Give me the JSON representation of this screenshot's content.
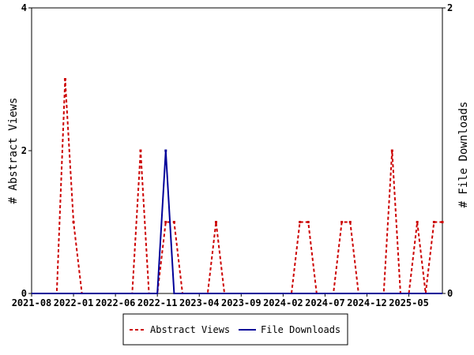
{
  "chart_data": {
    "type": "line",
    "x": [
      "2021-08",
      "2021-09",
      "2021-10",
      "2021-11",
      "2021-12",
      "2022-01",
      "2022-02",
      "2022-03",
      "2022-04",
      "2022-05",
      "2022-06",
      "2022-07",
      "2022-08",
      "2022-09",
      "2022-10",
      "2022-11",
      "2022-12",
      "2023-01",
      "2023-02",
      "2023-03",
      "2023-04",
      "2023-05",
      "2023-06",
      "2023-07",
      "2023-08",
      "2023-09",
      "2023-10",
      "2023-11",
      "2023-12",
      "2024-01",
      "2024-02",
      "2024-03",
      "2024-04",
      "2024-05",
      "2024-06",
      "2024-07",
      "2024-08",
      "2024-09",
      "2024-10",
      "2024-11",
      "2024-12",
      "2025-01",
      "2025-02",
      "2025-03",
      "2025-04",
      "2025-05",
      "2025-06",
      "2025-07",
      "2025-08",
      "2025-09"
    ],
    "x_tick_labels": [
      "2021-08",
      "2022-01",
      "2022-06",
      "2022-11",
      "2023-04",
      "2023-09",
      "2024-02",
      "2024-07",
      "2024-12",
      "2025-05"
    ],
    "series": [
      {
        "name": "Abstract Views",
        "axis": "left",
        "color": "#cc0000",
        "style": "dashed",
        "values": [
          0,
          0,
          0,
          0,
          3,
          1,
          0,
          0,
          0,
          0,
          0,
          0,
          0,
          2,
          0,
          0,
          1,
          1,
          0,
          0,
          0,
          0,
          1,
          0,
          0,
          0,
          0,
          0,
          0,
          0,
          0,
          0,
          1,
          1,
          0,
          0,
          0,
          1,
          1,
          0,
          0,
          0,
          0,
          2,
          0,
          0,
          1,
          0,
          1,
          1
        ]
      },
      {
        "name": "File Downloads",
        "axis": "right",
        "color": "#000099",
        "style": "solid",
        "values": [
          0,
          0,
          0,
          0,
          0,
          0,
          0,
          0,
          0,
          0,
          0,
          0,
          0,
          0,
          0,
          0,
          1,
          0,
          0,
          0,
          0,
          0,
          0,
          0,
          0,
          0,
          0,
          0,
          0,
          0,
          0,
          0,
          0,
          0,
          0,
          0,
          0,
          0,
          0,
          0,
          0,
          0,
          0,
          0,
          0,
          0,
          0,
          0,
          0,
          0
        ]
      }
    ],
    "ylabel_left": "# Abstract Views",
    "ylabel_right": "# File Downloads",
    "ylim_left": [
      0,
      4
    ],
    "ylim_right": [
      0,
      2
    ],
    "y_ticks_left": [
      "0",
      "2",
      "4"
    ],
    "y_ticks_right": [
      "0",
      "2"
    ],
    "legend_position": "bottom"
  }
}
